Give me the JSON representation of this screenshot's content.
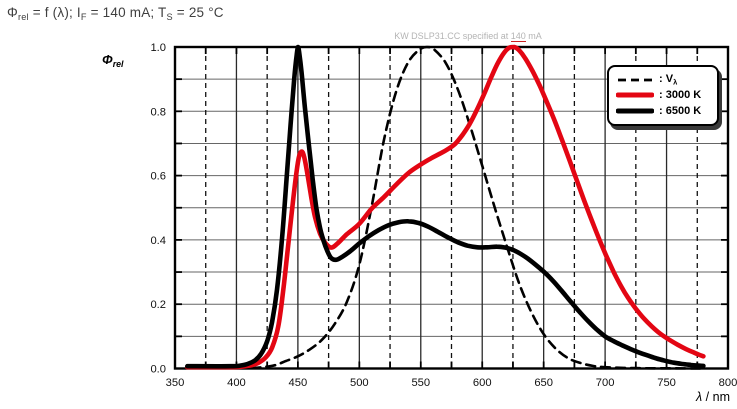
{
  "title": {
    "plain": "Φrel = f (λ); IF = 140 mA; TS = 25 °C",
    "segments": [
      {
        "t": "Φ"
      },
      {
        "t": "rel",
        "sub": true
      },
      {
        "t": " = f (λ); I"
      },
      {
        "t": "F",
        "sub": true
      },
      {
        "t": " = 140 mA; T"
      },
      {
        "t": "S",
        "sub": true
      },
      {
        "t": " = 25 °C"
      }
    ]
  },
  "watermark": {
    "plain": "KW DSLP31.CC specified at 140 mA",
    "segments": [
      {
        "t": "KW DSLP31.CC specified at "
      },
      {
        "t": "140",
        "underline": "#cc2222"
      },
      {
        "t": " mA"
      }
    ]
  },
  "axis_labels": {
    "x_segments": [
      {
        "t": "λ",
        "i": true
      },
      {
        "t": " / nm"
      }
    ],
    "y_segments": [
      {
        "t": "Φ",
        "i": true
      },
      {
        "t": "rel",
        "sub": true,
        "i": true
      }
    ]
  },
  "chart_data": {
    "type": "line",
    "title": "Φrel = f (λ); IF = 140 mA; TS = 25 °C",
    "xlabel": "λ / nm",
    "ylabel": "Φrel",
    "x_range": [
      350,
      800
    ],
    "y_range": [
      0,
      1
    ],
    "x_major_tick_step": 50,
    "x_minor_tick_step": 25,
    "y_grid_step": 0.1,
    "grid": true,
    "legend_position": "top-right",
    "x_tick_labels": [
      "350",
      "400",
      "450",
      "500",
      "550",
      "600",
      "650",
      "700",
      "750",
      "800"
    ],
    "y_tick_labels": [
      {
        "v": 1.0,
        "label": "1.0"
      },
      {
        "v": 0.8,
        "label": "0.8"
      },
      {
        "v": 0.6,
        "label": "0.6"
      },
      {
        "v": 0.4,
        "label": "0.4"
      },
      {
        "v": 0.2,
        "label": "0.2"
      },
      {
        "v": 0.0,
        "label": "0.0"
      }
    ],
    "grid_colors": {
      "horizontal": "#666666",
      "vertical_major": "#2a2a2a",
      "vertical_minor": "#111111"
    },
    "series": [
      {
        "name": "v-lambda",
        "legend_segments": [
          {
            "t": ": V"
          },
          {
            "t": "λ",
            "sub": true
          }
        ],
        "color": "#000000",
        "width": 2.6,
        "dash": "9,6",
        "points": [
          [
            400,
            0.001
          ],
          [
            415,
            0.002
          ],
          [
            425,
            0.006
          ],
          [
            432,
            0.011
          ],
          [
            440,
            0.023
          ],
          [
            450,
            0.038
          ],
          [
            460,
            0.06
          ],
          [
            470,
            0.091
          ],
          [
            480,
            0.139
          ],
          [
            490,
            0.208
          ],
          [
            500,
            0.323
          ],
          [
            510,
            0.503
          ],
          [
            520,
            0.71
          ],
          [
            530,
            0.862
          ],
          [
            540,
            0.954
          ],
          [
            550,
            0.995
          ],
          [
            555,
            1.0
          ],
          [
            560,
            0.995
          ],
          [
            570,
            0.952
          ],
          [
            580,
            0.87
          ],
          [
            590,
            0.757
          ],
          [
            600,
            0.631
          ],
          [
            610,
            0.503
          ],
          [
            620,
            0.381
          ],
          [
            630,
            0.265
          ],
          [
            640,
            0.175
          ],
          [
            650,
            0.107
          ],
          [
            660,
            0.061
          ],
          [
            670,
            0.032
          ],
          [
            680,
            0.017
          ],
          [
            690,
            0.008
          ],
          [
            700,
            0.004
          ],
          [
            715,
            0.002
          ],
          [
            730,
            0.001
          ],
          [
            750,
            0.0005
          ],
          [
            780,
            0.0002
          ]
        ]
      },
      {
        "name": "3000-k",
        "legend_segments": [
          {
            "t": ": 3000 K"
          }
        ],
        "color": "#e30613",
        "width": 4.6,
        "points": [
          [
            360,
            0.004
          ],
          [
            395,
            0.004
          ],
          [
            405,
            0.006
          ],
          [
            412,
            0.01
          ],
          [
            418,
            0.018
          ],
          [
            424,
            0.035
          ],
          [
            429,
            0.065
          ],
          [
            434,
            0.13
          ],
          [
            438,
            0.24
          ],
          [
            442,
            0.38
          ],
          [
            446,
            0.52
          ],
          [
            449,
            0.615
          ],
          [
            451,
            0.66
          ],
          [
            453,
            0.675
          ],
          [
            455,
            0.66
          ],
          [
            458,
            0.6
          ],
          [
            461,
            0.53
          ],
          [
            464,
            0.47
          ],
          [
            468,
            0.42
          ],
          [
            472,
            0.392
          ],
          [
            477,
            0.376
          ],
          [
            482,
            0.388
          ],
          [
            490,
            0.418
          ],
          [
            500,
            0.45
          ],
          [
            510,
            0.497
          ],
          [
            520,
            0.533
          ],
          [
            530,
            0.572
          ],
          [
            540,
            0.608
          ],
          [
            549,
            0.632
          ],
          [
            558,
            0.653
          ],
          [
            566,
            0.669
          ],
          [
            572,
            0.682
          ],
          [
            578,
            0.699
          ],
          [
            584,
            0.727
          ],
          [
            590,
            0.762
          ],
          [
            596,
            0.807
          ],
          [
            602,
            0.858
          ],
          [
            608,
            0.912
          ],
          [
            613,
            0.952
          ],
          [
            618,
            0.983
          ],
          [
            622,
            0.998
          ],
          [
            626,
            1.0
          ],
          [
            630,
            0.99
          ],
          [
            635,
            0.965
          ],
          [
            641,
            0.925
          ],
          [
            647,
            0.878
          ],
          [
            653,
            0.825
          ],
          [
            659,
            0.77
          ],
          [
            665,
            0.71
          ],
          [
            671,
            0.648
          ],
          [
            677,
            0.585
          ],
          [
            683,
            0.522
          ],
          [
            689,
            0.462
          ],
          [
            695,
            0.404
          ],
          [
            701,
            0.35
          ],
          [
            707,
            0.3
          ],
          [
            713,
            0.256
          ],
          [
            719,
            0.218
          ],
          [
            725,
            0.186
          ],
          [
            731,
            0.158
          ],
          [
            738,
            0.131
          ],
          [
            745,
            0.108
          ],
          [
            752,
            0.09
          ],
          [
            759,
            0.074
          ],
          [
            766,
            0.06
          ],
          [
            772,
            0.05
          ],
          [
            777,
            0.042
          ],
          [
            780,
            0.038
          ]
        ]
      },
      {
        "name": "6500-k",
        "legend_segments": [
          {
            "t": ": 6500 K"
          }
        ],
        "color": "#000000",
        "width": 4.6,
        "points": [
          [
            360,
            0.007
          ],
          [
            395,
            0.007
          ],
          [
            403,
            0.009
          ],
          [
            409,
            0.014
          ],
          [
            415,
            0.025
          ],
          [
            420,
            0.045
          ],
          [
            425,
            0.085
          ],
          [
            429,
            0.145
          ],
          [
            433,
            0.245
          ],
          [
            437,
            0.4
          ],
          [
            441,
            0.6
          ],
          [
            444,
            0.755
          ],
          [
            447,
            0.9
          ],
          [
            449,
            0.975
          ],
          [
            450,
            1.0
          ],
          [
            451,
            0.985
          ],
          [
            453,
            0.92
          ],
          [
            456,
            0.8
          ],
          [
            459,
            0.695
          ],
          [
            462,
            0.59
          ],
          [
            465,
            0.5
          ],
          [
            468,
            0.438
          ],
          [
            471,
            0.396
          ],
          [
            474,
            0.365
          ],
          [
            477,
            0.344
          ],
          [
            481,
            0.338
          ],
          [
            486,
            0.347
          ],
          [
            493,
            0.366
          ],
          [
            500,
            0.389
          ],
          [
            508,
            0.412
          ],
          [
            516,
            0.431
          ],
          [
            524,
            0.446
          ],
          [
            532,
            0.455
          ],
          [
            540,
            0.458
          ],
          [
            548,
            0.453
          ],
          [
            556,
            0.441
          ],
          [
            564,
            0.425
          ],
          [
            572,
            0.408
          ],
          [
            580,
            0.393
          ],
          [
            588,
            0.382
          ],
          [
            596,
            0.377
          ],
          [
            604,
            0.377
          ],
          [
            612,
            0.379
          ],
          [
            619,
            0.376
          ],
          [
            625,
            0.369
          ],
          [
            631,
            0.357
          ],
          [
            637,
            0.342
          ],
          [
            644,
            0.321
          ],
          [
            651,
            0.298
          ],
          [
            658,
            0.271
          ],
          [
            665,
            0.24
          ],
          [
            672,
            0.208
          ],
          [
            679,
            0.177
          ],
          [
            686,
            0.148
          ],
          [
            693,
            0.122
          ],
          [
            700,
            0.1
          ],
          [
            707,
            0.085
          ],
          [
            714,
            0.072
          ],
          [
            721,
            0.06
          ],
          [
            728,
            0.049
          ],
          [
            735,
            0.04
          ],
          [
            742,
            0.031
          ],
          [
            749,
            0.024
          ],
          [
            756,
            0.018
          ],
          [
            763,
            0.014
          ],
          [
            770,
            0.011
          ],
          [
            776,
            0.009
          ],
          [
            780,
            0.008
          ]
        ]
      }
    ]
  }
}
